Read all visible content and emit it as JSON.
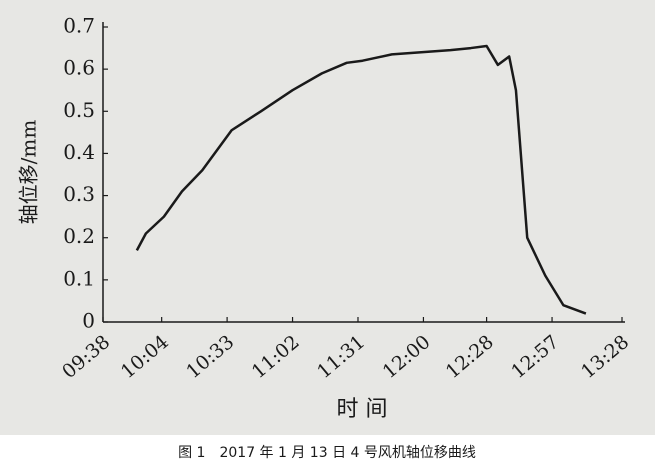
{
  "chart_data": {
    "type": "line",
    "title": "图 1　2017 年 1 月 13 日 4 号风机轴位移曲线",
    "x_label": "时 间",
    "y_label": "轴位移/mm",
    "x": [
      593,
      597,
      605,
      613,
      622,
      635,
      648,
      662,
      675,
      686,
      693,
      706,
      719,
      732,
      741,
      748,
      753,
      758,
      761,
      766,
      774,
      782,
      792
    ],
    "series": [
      {
        "color": "#1a1a1a",
        "values": [
          0.17,
          0.21,
          0.25,
          0.31,
          0.36,
          0.455,
          0.5,
          0.55,
          0.59,
          0.615,
          0.62,
          0.635,
          0.64,
          0.645,
          0.65,
          0.655,
          0.61,
          0.63,
          0.55,
          0.2,
          0.11,
          0.04,
          0.02
        ]
      }
    ],
    "xlim": [
      578,
      808
    ],
    "xticks": [
      {
        "value": 578,
        "label": "09:38"
      },
      {
        "value": 604,
        "label": "10:04"
      },
      {
        "value": 633,
        "label": "10:33"
      },
      {
        "value": 662,
        "label": "11:02"
      },
      {
        "value": 691,
        "label": "11:31"
      },
      {
        "value": 720,
        "label": "12:00"
      },
      {
        "value": 748,
        "label": "12:28"
      },
      {
        "value": 777,
        "label": "12:57"
      },
      {
        "value": 808,
        "label": "13:28"
      }
    ],
    "ylim": [
      0,
      0.7
    ],
    "yticks": [
      0,
      0.1,
      0.2,
      0.3,
      0.4,
      0.5,
      0.6,
      0.7
    ]
  }
}
